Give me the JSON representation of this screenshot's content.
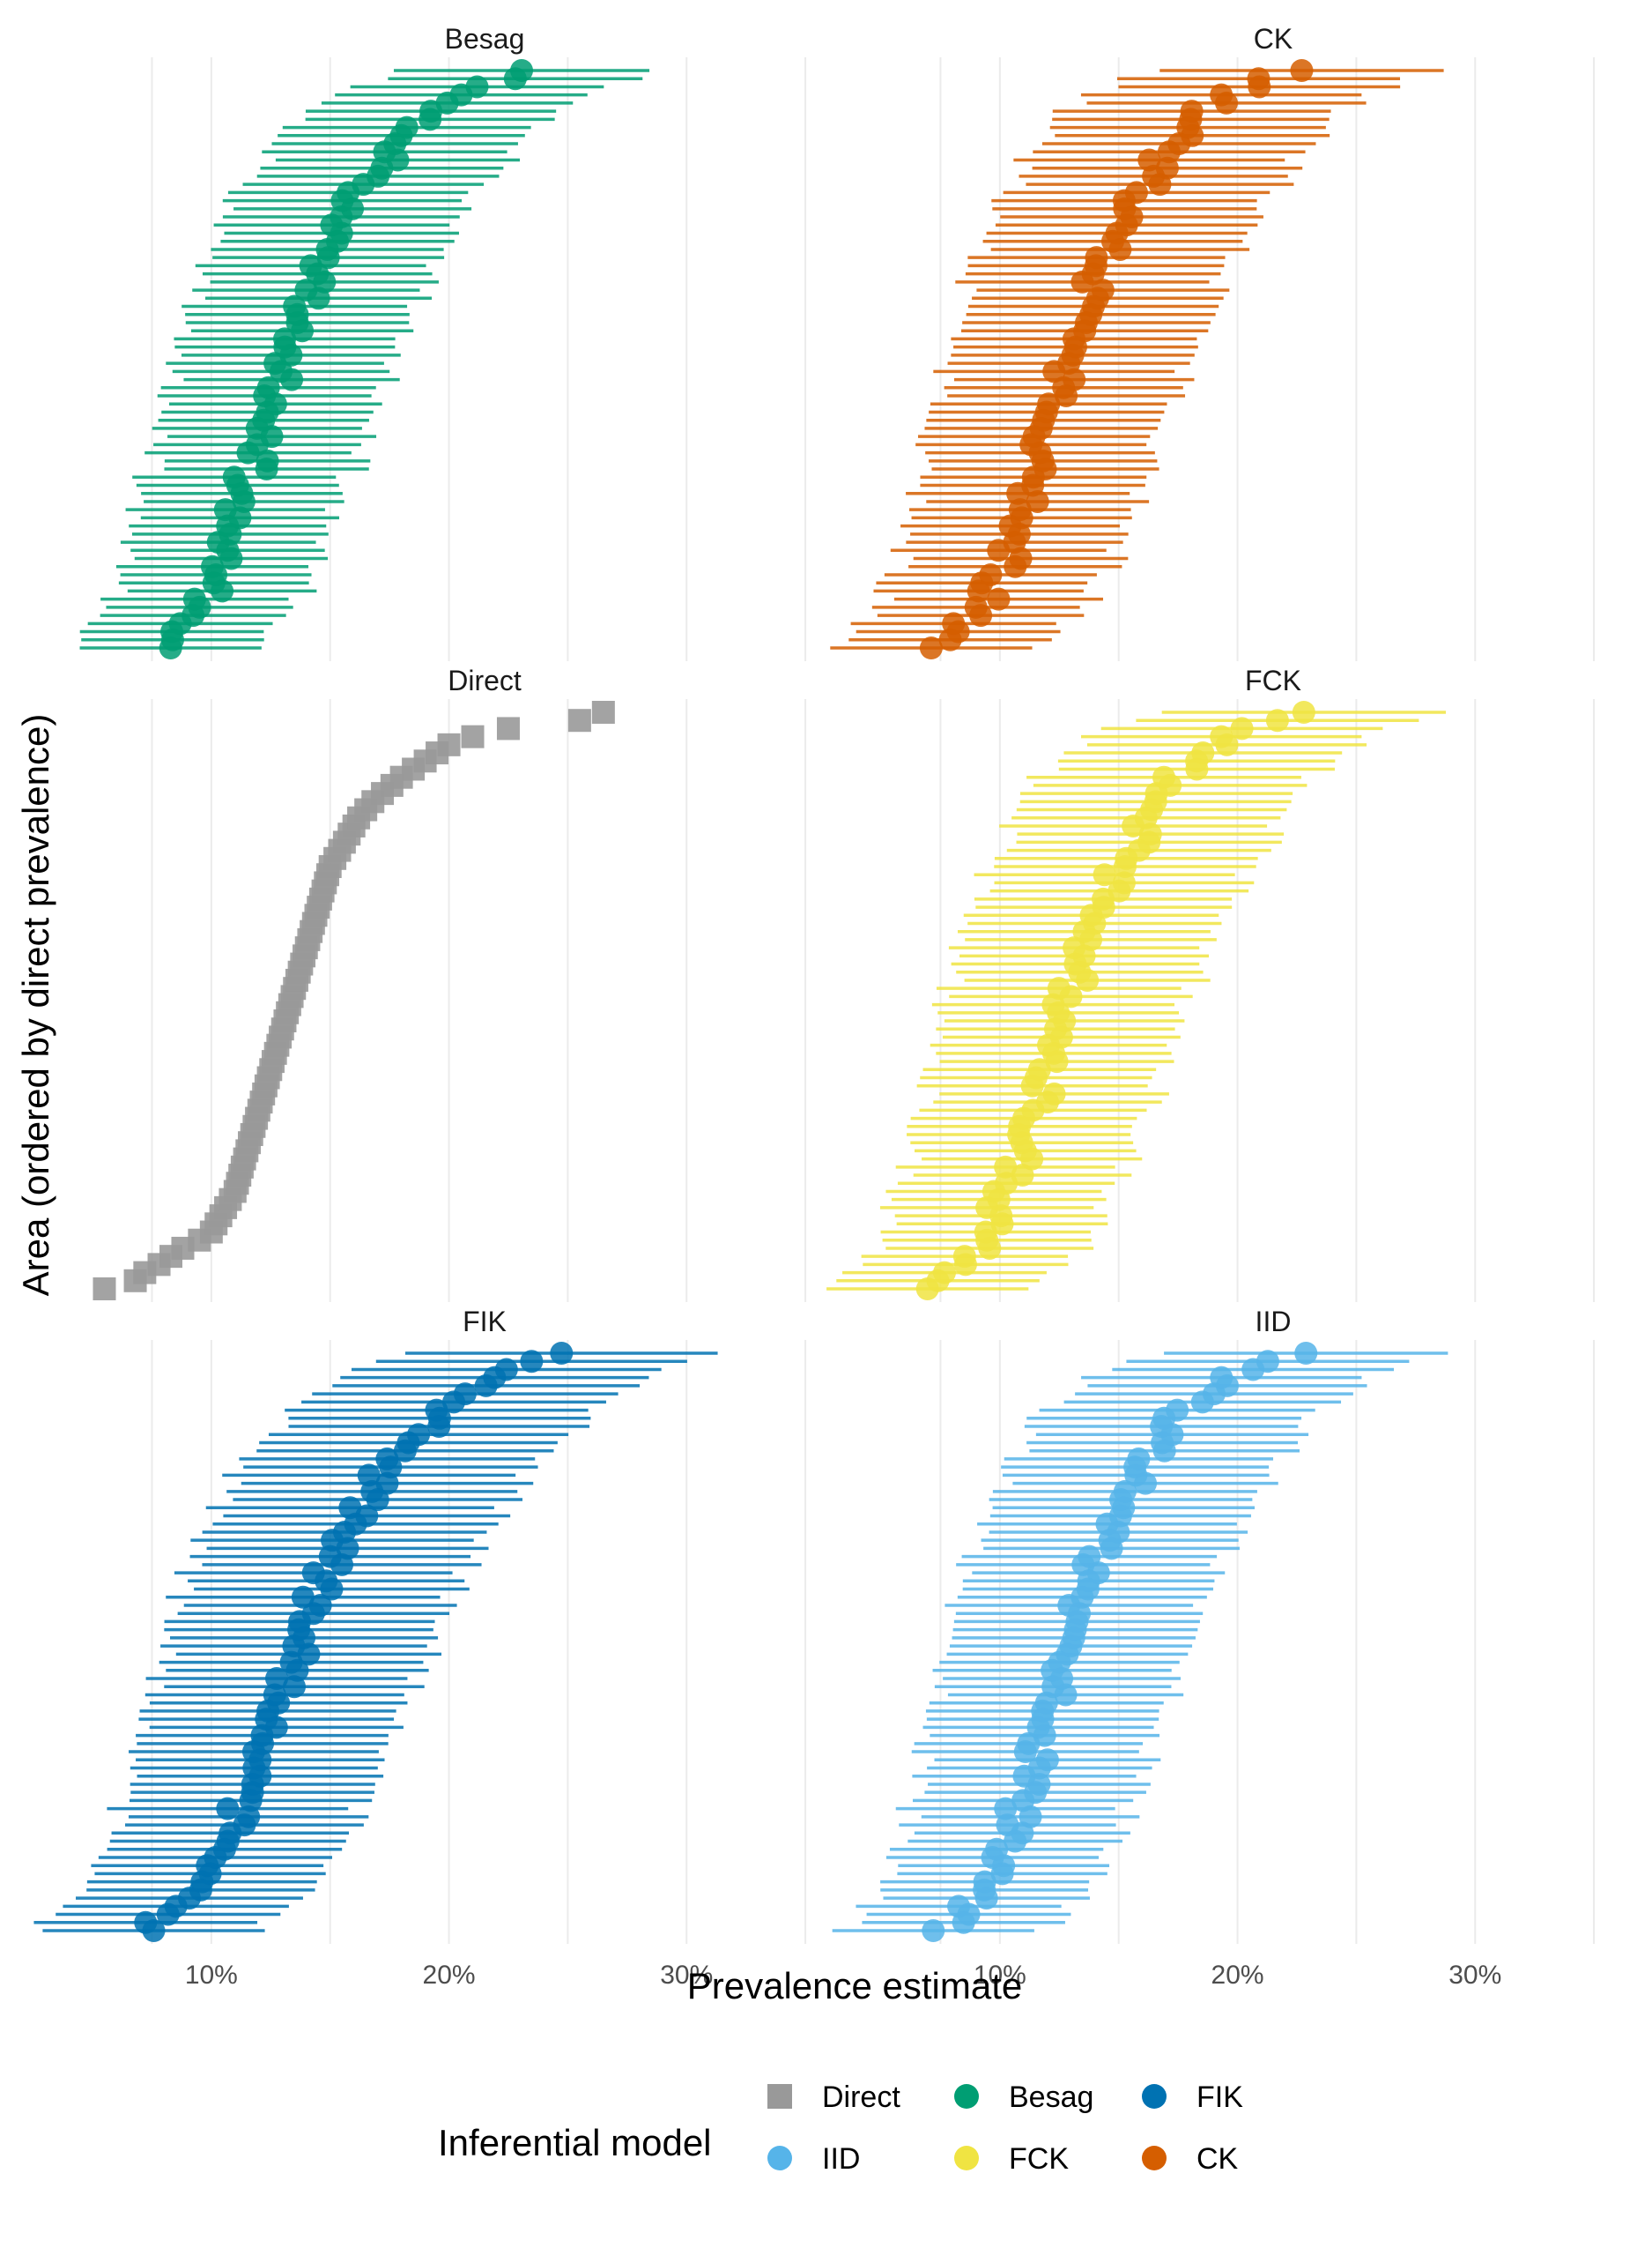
{
  "chart_data": {
    "type": "forest",
    "xlabel": "Prevalence estimate",
    "ylabel": "Area (ordered by direct prevalence)",
    "x_tick_labels": [
      "10%",
      "20%",
      "30%"
    ],
    "x_tick_values": [
      0.1,
      0.2,
      0.3
    ],
    "xlim": [
      0.05,
      0.38
    ],
    "grid": true,
    "legend": {
      "title": "Inferential model",
      "position": "bottom",
      "entries": [
        {
          "name": "Direct",
          "color": "#999999",
          "shape": "square"
        },
        {
          "name": "Besag",
          "color": "#009E73",
          "shape": "circle"
        },
        {
          "name": "FIK",
          "color": "#0072B2",
          "shape": "circle"
        },
        {
          "name": "IID",
          "color": "#56B4E9",
          "shape": "circle"
        },
        {
          "name": "FCK",
          "color": "#F0E442",
          "shape": "circle"
        },
        {
          "name": "CK",
          "color": "#D55E00",
          "shape": "circle"
        }
      ]
    },
    "panels": [
      {
        "name": "Besag",
        "color": "#009E73",
        "marker": "circle",
        "estimates": [
          0.083,
          0.083,
          0.088,
          0.09,
          0.093,
          0.095,
          0.098,
          0.1,
          0.1,
          0.103,
          0.103,
          0.105,
          0.105,
          0.108,
          0.108,
          0.11,
          0.11,
          0.11,
          0.113,
          0.113,
          0.115,
          0.115,
          0.118,
          0.118,
          0.12,
          0.12,
          0.12,
          0.123,
          0.123,
          0.123,
          0.125,
          0.125,
          0.128,
          0.128,
          0.13,
          0.13,
          0.133,
          0.133,
          0.135,
          0.135,
          0.138,
          0.138,
          0.14,
          0.14,
          0.143,
          0.143,
          0.145,
          0.145,
          0.148,
          0.15,
          0.15,
          0.153,
          0.155,
          0.158,
          0.16,
          0.16,
          0.163,
          0.165,
          0.168,
          0.17,
          0.173,
          0.175,
          0.178,
          0.18,
          0.183,
          0.188,
          0.193,
          0.2,
          0.208,
          0.215,
          0.225,
          0.235
        ],
        "half_width": 0.045
      },
      {
        "name": "CK",
        "color": "#D55E00",
        "marker": "circle",
        "estimates": [
          0.077,
          0.08,
          0.083,
          0.086,
          0.089,
          0.092,
          0.094,
          0.096,
          0.098,
          0.1,
          0.102,
          0.103,
          0.104,
          0.106,
          0.107,
          0.108,
          0.11,
          0.111,
          0.112,
          0.113,
          0.114,
          0.115,
          0.116,
          0.117,
          0.118,
          0.119,
          0.12,
          0.121,
          0.122,
          0.123,
          0.124,
          0.125,
          0.126,
          0.127,
          0.128,
          0.129,
          0.13,
          0.131,
          0.132,
          0.133,
          0.134,
          0.135,
          0.136,
          0.137,
          0.138,
          0.139,
          0.14,
          0.142,
          0.144,
          0.146,
          0.148,
          0.15,
          0.152,
          0.154,
          0.156,
          0.158,
          0.16,
          0.162,
          0.164,
          0.166,
          0.168,
          0.17,
          0.172,
          0.175,
          0.178,
          0.181,
          0.185,
          0.19,
          0.196,
          0.204,
          0.214,
          0.225
        ],
        "half_width": 0.05
      },
      {
        "name": "Direct",
        "color": "#999999",
        "marker": "square",
        "estimates": [
          0.055,
          0.068,
          0.072,
          0.078,
          0.083,
          0.088,
          0.095,
          0.1,
          0.102,
          0.104,
          0.106,
          0.108,
          0.11,
          0.111,
          0.112,
          0.113,
          0.114,
          0.115,
          0.116,
          0.117,
          0.118,
          0.119,
          0.12,
          0.121,
          0.122,
          0.123,
          0.124,
          0.125,
          0.126,
          0.127,
          0.128,
          0.129,
          0.13,
          0.131,
          0.132,
          0.133,
          0.134,
          0.135,
          0.136,
          0.137,
          0.138,
          0.139,
          0.14,
          0.141,
          0.142,
          0.143,
          0.144,
          0.145,
          0.146,
          0.147,
          0.148,
          0.149,
          0.15,
          0.152,
          0.154,
          0.156,
          0.158,
          0.16,
          0.162,
          0.165,
          0.168,
          0.172,
          0.176,
          0.18,
          0.185,
          0.19,
          0.195,
          0.2,
          0.21,
          0.225,
          0.255,
          0.265
        ],
        "half_width": 0
      },
      {
        "name": "FCK",
        "color": "#F0E442",
        "marker": "circle",
        "estimates": [
          0.075,
          0.078,
          0.081,
          0.084,
          0.087,
          0.09,
          0.092,
          0.094,
          0.096,
          0.098,
          0.1,
          0.101,
          0.103,
          0.104,
          0.106,
          0.107,
          0.108,
          0.11,
          0.111,
          0.112,
          0.113,
          0.114,
          0.115,
          0.116,
          0.117,
          0.118,
          0.119,
          0.12,
          0.121,
          0.122,
          0.123,
          0.124,
          0.125,
          0.126,
          0.127,
          0.128,
          0.129,
          0.13,
          0.131,
          0.132,
          0.133,
          0.134,
          0.135,
          0.136,
          0.137,
          0.138,
          0.14,
          0.142,
          0.144,
          0.146,
          0.148,
          0.15,
          0.152,
          0.154,
          0.156,
          0.158,
          0.16,
          0.162,
          0.164,
          0.166,
          0.168,
          0.17,
          0.172,
          0.175,
          0.178,
          0.181,
          0.185,
          0.19,
          0.196,
          0.204,
          0.214,
          0.225
        ],
        "half_width": 0.05
      },
      {
        "name": "FIK",
        "color": "#0072B2",
        "marker": "circle",
        "estimates": [
          0.075,
          0.078,
          0.082,
          0.086,
          0.089,
          0.092,
          0.095,
          0.097,
          0.1,
          0.102,
          0.104,
          0.106,
          0.108,
          0.11,
          0.111,
          0.112,
          0.114,
          0.115,
          0.116,
          0.118,
          0.119,
          0.12,
          0.121,
          0.122,
          0.124,
          0.125,
          0.126,
          0.127,
          0.128,
          0.13,
          0.131,
          0.132,
          0.133,
          0.134,
          0.136,
          0.137,
          0.138,
          0.139,
          0.14,
          0.142,
          0.143,
          0.144,
          0.146,
          0.147,
          0.148,
          0.15,
          0.152,
          0.154,
          0.156,
          0.158,
          0.16,
          0.162,
          0.164,
          0.166,
          0.168,
          0.17,
          0.172,
          0.175,
          0.178,
          0.181,
          0.184,
          0.188,
          0.192,
          0.196,
          0.2,
          0.205,
          0.21,
          0.216,
          0.222,
          0.23,
          0.24,
          0.25
        ],
        "half_width": 0.055
      },
      {
        "name": "IID",
        "color": "#56B4E9",
        "marker": "circle",
        "estimates": [
          0.077,
          0.08,
          0.083,
          0.086,
          0.089,
          0.092,
          0.094,
          0.096,
          0.098,
          0.1,
          0.102,
          0.103,
          0.104,
          0.106,
          0.107,
          0.108,
          0.11,
          0.111,
          0.112,
          0.113,
          0.114,
          0.115,
          0.116,
          0.117,
          0.118,
          0.119,
          0.12,
          0.121,
          0.122,
          0.123,
          0.124,
          0.125,
          0.126,
          0.127,
          0.128,
          0.129,
          0.13,
          0.131,
          0.132,
          0.133,
          0.134,
          0.135,
          0.136,
          0.137,
          0.138,
          0.139,
          0.14,
          0.142,
          0.144,
          0.146,
          0.148,
          0.15,
          0.152,
          0.154,
          0.156,
          0.158,
          0.16,
          0.162,
          0.164,
          0.166,
          0.168,
          0.17,
          0.172,
          0.175,
          0.178,
          0.181,
          0.185,
          0.19,
          0.196,
          0.204,
          0.214,
          0.225
        ],
        "half_width": 0.05
      }
    ]
  }
}
